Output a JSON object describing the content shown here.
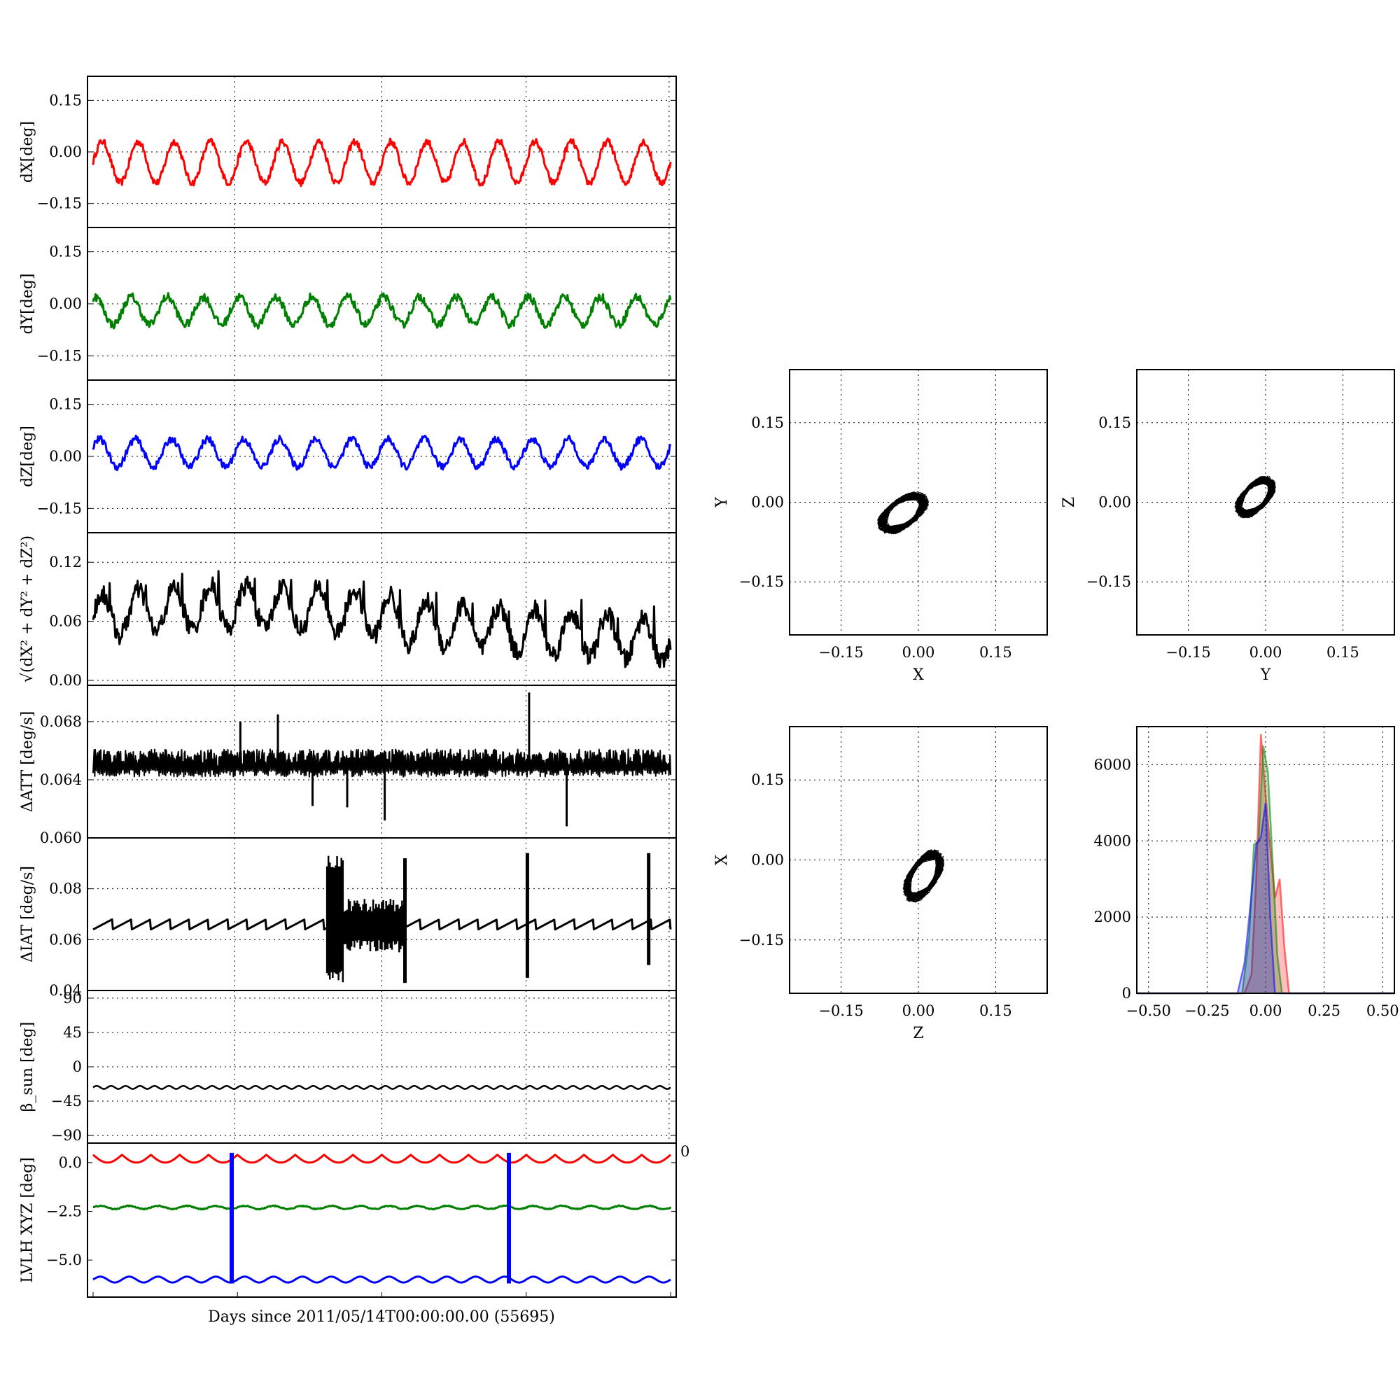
{
  "figure": {
    "xlabel": "Days since 2011/05/14T00:00:00.00 (55695)",
    "corner_label": "0"
  },
  "colors": {
    "red": "#ff0000",
    "green": "#008000",
    "blue": "#0000ff",
    "black": "#000000"
  },
  "chart_data": [
    {
      "id": "dx",
      "type": "line",
      "ylabel": "dX[deg]",
      "color": "red",
      "ylim": [
        -0.22,
        0.22
      ],
      "yticks": [
        -0.15,
        0.0,
        0.15
      ],
      "yticklabels": [
        "−0.15",
        "0.00",
        "0.15"
      ],
      "grid": true,
      "cycles": 16,
      "amplitude": 0.06,
      "offset": -0.03,
      "noise": 0.01
    },
    {
      "id": "dy",
      "type": "line",
      "ylabel": "dY[deg]",
      "color": "green",
      "ylim": [
        -0.22,
        0.22
      ],
      "yticks": [
        -0.15,
        0.0,
        0.15
      ],
      "yticklabels": [
        "−0.15",
        "0.00",
        "0.15"
      ],
      "grid": true,
      "cycles": 16,
      "amplitude": 0.04,
      "offset": -0.02,
      "noise": 0.012
    },
    {
      "id": "dz",
      "type": "line",
      "ylabel": "dZ[deg]",
      "color": "blue",
      "ylim": [
        -0.22,
        0.22
      ],
      "yticks": [
        -0.15,
        0.0,
        0.15
      ],
      "yticklabels": [
        "−0.15",
        "0.00",
        "0.15"
      ],
      "grid": true,
      "cycles": 16,
      "amplitude": 0.04,
      "offset": 0.01,
      "noise": 0.01
    },
    {
      "id": "dr",
      "type": "line",
      "ylabel": "√(dX² + dY² + dZ²)",
      "color": "black",
      "ylim": [
        -0.005,
        0.15
      ],
      "yticks": [
        0.0,
        0.06,
        0.12
      ],
      "yticklabels": [
        "0.00",
        "0.06",
        "0.12"
      ],
      "grid": true,
      "cycles": 16,
      "amplitude": 0.02,
      "offset": 0.06,
      "noise": 0.01
    },
    {
      "id": "datt",
      "type": "line",
      "ylabel": "ΔATT [deg/s]",
      "color": "black",
      "ylim": [
        0.06,
        0.0705
      ],
      "yticks": [
        0.06,
        0.064,
        0.068
      ],
      "yticklabels": [
        "0.060",
        "0.064",
        "0.068"
      ],
      "grid": true,
      "base": 0.0655,
      "band": 0.0012
    },
    {
      "id": "diat",
      "type": "line",
      "ylabel": "ΔIAT [deg/s]",
      "color": "black",
      "ylim": [
        0.04,
        0.1
      ],
      "yticks": [
        0.04,
        0.06,
        0.08
      ],
      "yticklabels": [
        "0.04",
        "0.06",
        "0.08"
      ],
      "grid": true,
      "base": 0.066
    },
    {
      "id": "beta",
      "type": "line",
      "ylabel": "β_sun [deg]",
      "color": "black",
      "ylim": [
        -100,
        100
      ],
      "yticks": [
        -90,
        -45,
        0,
        45,
        90
      ],
      "yticklabels": [
        "−90",
        "−45",
        "0",
        "45",
        "90"
      ],
      "grid": true,
      "value": -27
    },
    {
      "id": "lvlh",
      "type": "line",
      "ylabel": "LVLH XYZ [deg]",
      "colors": [
        "red",
        "green",
        "blue"
      ],
      "ylim": [
        -6.9,
        1.0
      ],
      "yticks": [
        -5.0,
        -2.5,
        0.0
      ],
      "yticklabels": [
        "−5.0",
        "−2.5",
        "0.0"
      ],
      "grid": false,
      "levels": [
        0.4,
        -2.3,
        -6.0
      ]
    },
    {
      "id": "xy",
      "type": "scatter",
      "xlabel": "X",
      "ylabel": "Y",
      "xlim": [
        -0.25,
        0.25
      ],
      "ylim": [
        -0.25,
        0.25
      ],
      "ticks": [
        -0.15,
        0.0,
        0.15
      ],
      "ticklabels": [
        "−0.15",
        "0.00",
        "0.15"
      ],
      "grid": true,
      "center": [
        -0.03,
        -0.02
      ],
      "spread": [
        0.05,
        0.04
      ]
    },
    {
      "id": "yz",
      "type": "scatter",
      "xlabel": "Y",
      "ylabel": "Z",
      "xlim": [
        -0.25,
        0.25
      ],
      "ylim": [
        -0.25,
        0.25
      ],
      "ticks": [
        -0.15,
        0.0,
        0.15
      ],
      "ticklabels": [
        "−0.15",
        "0.00",
        "0.15"
      ],
      "grid": true,
      "center": [
        -0.02,
        0.01
      ],
      "spread": [
        0.04,
        0.04
      ]
    },
    {
      "id": "zx",
      "type": "scatter",
      "xlabel": "Z",
      "ylabel": "X",
      "xlim": [
        -0.25,
        0.25
      ],
      "ylim": [
        -0.25,
        0.25
      ],
      "ticks": [
        -0.15,
        0.0,
        0.15
      ],
      "ticklabels": [
        "−0.15",
        "0.00",
        "0.15"
      ],
      "grid": true,
      "center": [
        0.01,
        -0.03
      ],
      "spread": [
        0.04,
        0.05
      ]
    },
    {
      "id": "hist",
      "type": "bar",
      "xlim": [
        -0.55,
        0.55
      ],
      "ylim": [
        0,
        7000
      ],
      "xticks": [
        -0.5,
        -0.25,
        0.0,
        0.25,
        0.5
      ],
      "xticklabels": [
        "−0.50",
        "−0.25",
        "0.00",
        "0.25",
        "0.50"
      ],
      "yticks": [
        0,
        2000,
        4000,
        6000
      ],
      "yticklabels": [
        "0",
        "2000",
        "4000",
        "6000"
      ],
      "grid": true,
      "series": [
        {
          "color": "red",
          "x": [
            -0.09,
            -0.06,
            -0.04,
            -0.02,
            0.0,
            0.02,
            0.04,
            0.06,
            0.08,
            0.1
          ],
          "values": [
            0,
            500,
            3000,
            6800,
            5200,
            3800,
            2500,
            3000,
            1200,
            0
          ]
        },
        {
          "color": "green",
          "x": [
            -0.1,
            -0.07,
            -0.05,
            -0.03,
            -0.01,
            0.01,
            0.03,
            0.05,
            0.07
          ],
          "values": [
            0,
            1500,
            3900,
            4000,
            6500,
            5800,
            3500,
            1000,
            0
          ]
        },
        {
          "color": "blue",
          "x": [
            -0.12,
            -0.09,
            -0.06,
            -0.04,
            -0.02,
            0.0,
            0.02,
            0.04
          ],
          "values": [
            0,
            800,
            2600,
            3900,
            4100,
            5000,
            2000,
            0
          ]
        }
      ]
    }
  ]
}
